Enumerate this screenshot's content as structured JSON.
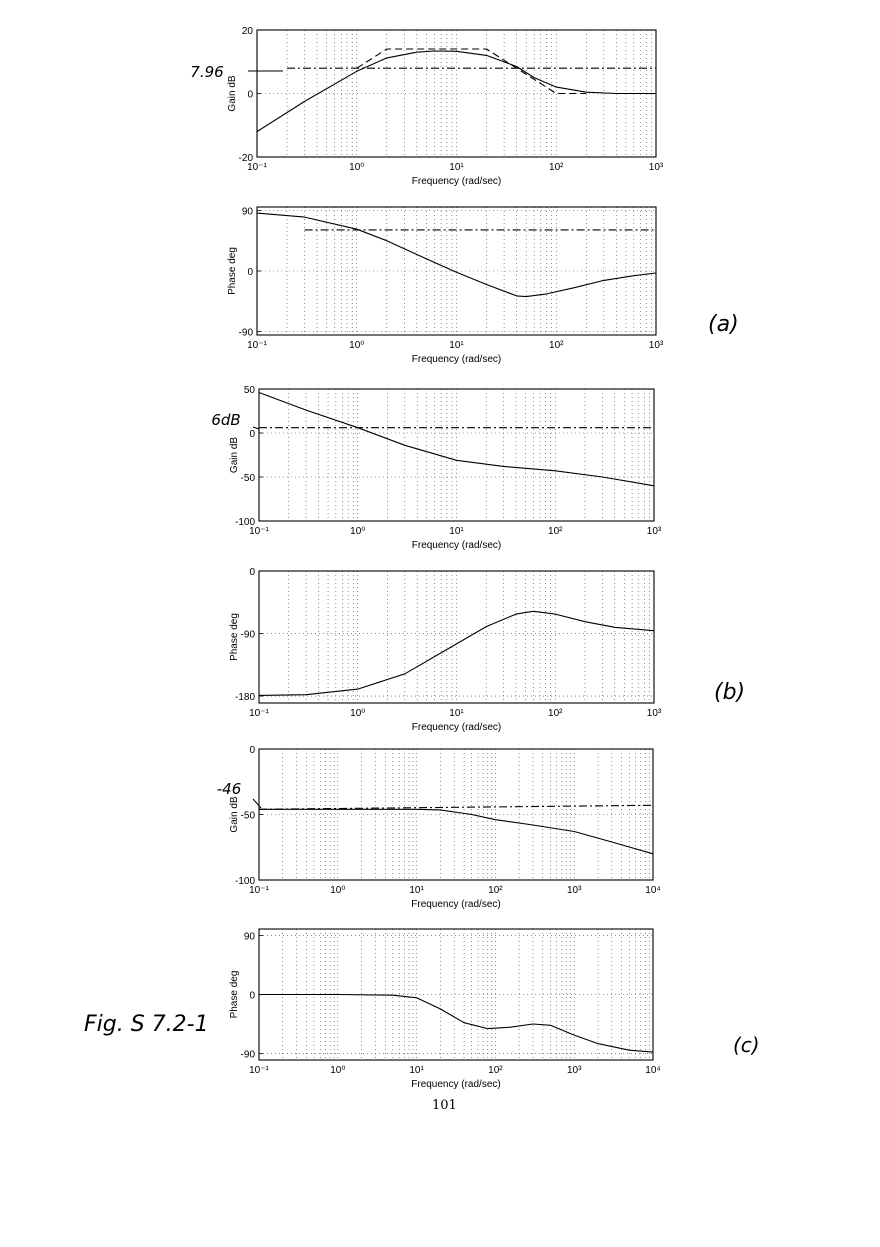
{
  "page": {
    "panel_labels": [
      "(a)",
      "(b)",
      "(c)"
    ],
    "figure_label": "Fig. S 7.2-1",
    "page_number": "101"
  },
  "chart_data": [
    {
      "type": "line",
      "id": "a-gain",
      "xscale": "log",
      "xlim": [
        0.1,
        1000
      ],
      "ylim": [
        -20,
        20
      ],
      "xticks": [
        0.1,
        1,
        10,
        100,
        1000
      ],
      "yticks": [
        -20,
        0,
        20
      ],
      "ytick_labels": [
        "-20",
        "0",
        "20"
      ],
      "xlabel": "Frequency (rad/sec)",
      "ylabel": "Gain dB",
      "grid": true,
      "series": [
        {
          "style": "solid",
          "x": [
            0.1,
            0.3,
            1,
            2,
            4,
            6,
            10,
            20,
            40,
            60,
            100,
            200,
            400,
            1000
          ],
          "y": [
            -12,
            -2.5,
            7,
            11.2,
            13,
            13.4,
            13.3,
            12,
            8.5,
            5,
            2,
            0.4,
            0,
            0
          ]
        },
        {
          "style": "dashdot",
          "x": [
            0.2,
            1000
          ],
          "y": [
            7.96,
            7.96
          ]
        },
        {
          "style": "dashed",
          "x": [
            1,
            2,
            20,
            100,
            200
          ],
          "y": [
            7.96,
            14,
            14,
            0,
            0
          ]
        }
      ],
      "annotations": [
        {
          "text": "7.96"
        }
      ]
    },
    {
      "type": "line",
      "id": "a-phase",
      "xscale": "log",
      "xlim": [
        0.1,
        1000
      ],
      "ylim": [
        -95,
        95
      ],
      "xticks": [
        0.1,
        1,
        10,
        100,
        1000
      ],
      "yticks": [
        -90,
        0,
        90
      ],
      "ytick_labels": [
        "-90",
        "0",
        "90"
      ],
      "xlabel": "Frequency (rad/sec)",
      "ylabel": "Phase deg",
      "grid": true,
      "series": [
        {
          "style": "solid",
          "x": [
            0.1,
            0.3,
            1,
            2,
            5,
            10,
            20,
            40,
            50,
            80,
            150,
            300,
            600,
            1000
          ],
          "y": [
            86,
            80,
            62,
            45,
            18,
            -2,
            -20,
            -37,
            -38,
            -34,
            -25,
            -14,
            -7,
            -3
          ]
        },
        {
          "style": "dashdot",
          "x": [
            0.3,
            1000
          ],
          "y": [
            61,
            61
          ]
        }
      ]
    },
    {
      "type": "line",
      "id": "b-gain",
      "xscale": "log",
      "xlim": [
        0.1,
        1000
      ],
      "ylim": [
        -100,
        50
      ],
      "xticks": [
        0.1,
        1,
        10,
        100,
        1000
      ],
      "yticks": [
        -100,
        -50,
        0,
        50
      ],
      "ytick_labels": [
        "-100",
        "-50",
        "0",
        "50"
      ],
      "xlabel": "Frequency (rad/sec)",
      "ylabel": "Gain dB",
      "grid": true,
      "series": [
        {
          "style": "solid",
          "x": [
            0.1,
            0.3,
            1,
            3,
            10,
            30,
            100,
            300,
            1000
          ],
          "y": [
            46,
            26,
            6,
            -14,
            -31,
            -38,
            -43,
            -50,
            -60
          ]
        },
        {
          "style": "dashdot",
          "x": [
            0.1,
            1000
          ],
          "y": [
            6,
            6
          ]
        }
      ],
      "annotations": [
        {
          "text": "6dB"
        }
      ]
    },
    {
      "type": "line",
      "id": "b-phase",
      "xscale": "log",
      "xlim": [
        0.1,
        1000
      ],
      "ylim": [
        -190,
        0
      ],
      "xticks": [
        0.1,
        1,
        10,
        100,
        1000
      ],
      "yticks": [
        -180,
        -90,
        0
      ],
      "ytick_labels": [
        "-180",
        "-90",
        "0"
      ],
      "xlabel": "Frequency (rad/sec)",
      "ylabel": "Phase deg",
      "grid": true,
      "series": [
        {
          "style": "solid",
          "x": [
            0.1,
            0.3,
            1,
            3,
            10,
            20,
            40,
            60,
            100,
            200,
            400,
            1000
          ],
          "y": [
            -179,
            -178,
            -170,
            -148,
            -105,
            -80,
            -62,
            -58,
            -62,
            -73,
            -81,
            -86
          ]
        }
      ]
    },
    {
      "type": "line",
      "id": "c-gain",
      "xscale": "log",
      "xlim": [
        0.1,
        10000
      ],
      "ylim": [
        -100,
        0
      ],
      "xticks": [
        0.1,
        1,
        10,
        100,
        1000,
        10000
      ],
      "yticks": [
        -100,
        -50,
        0
      ],
      "ytick_labels": [
        "-100",
        "-50",
        "0"
      ],
      "xlabel": "Frequency (rad/sec)",
      "ylabel": "Gain dB",
      "grid": true,
      "series": [
        {
          "style": "solid",
          "x": [
            0.1,
            1,
            10,
            20,
            50,
            100,
            300,
            1000,
            3000,
            10000
          ],
          "y": [
            -46,
            -46,
            -46,
            -46.5,
            -50,
            -54,
            -58,
            -63,
            -71,
            -80
          ]
        },
        {
          "style": "dashdot",
          "x": [
            0.1,
            10000
          ],
          "y": [
            -46,
            -43
          ]
        }
      ],
      "annotations": [
        {
          "text": "-46"
        }
      ]
    },
    {
      "type": "line",
      "id": "c-phase",
      "xscale": "log",
      "xlim": [
        0.1,
        10000
      ],
      "ylim": [
        -100,
        100
      ],
      "xticks": [
        0.1,
        1,
        10,
        100,
        1000,
        10000
      ],
      "yticks": [
        -90,
        0,
        90
      ],
      "ytick_labels": [
        "-90",
        "0",
        "90"
      ],
      "xlabel": "Frequency (rad/sec)",
      "ylabel": "Phase deg",
      "grid": true,
      "series": [
        {
          "style": "solid",
          "x": [
            0.1,
            1,
            5,
            10,
            20,
            40,
            80,
            150,
            300,
            500,
            1000,
            2000,
            5000,
            10000
          ],
          "y": [
            0,
            0,
            -1,
            -5,
            -22,
            -43,
            -52,
            -50,
            -45,
            -47,
            -62,
            -75,
            -85,
            -88
          ]
        }
      ]
    }
  ]
}
